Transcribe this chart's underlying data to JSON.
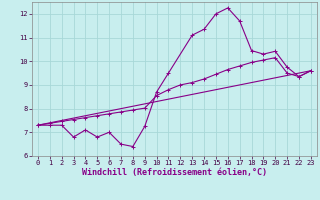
{
  "title": "",
  "xlabel": "Windchill (Refroidissement éolien,°C)",
  "bg_color": "#c8eeee",
  "grid_color": "#a8d8d8",
  "line_color": "#880088",
  "xlim": [
    -0.5,
    23.5
  ],
  "ylim": [
    6,
    12.5
  ],
  "xticks": [
    0,
    1,
    2,
    3,
    4,
    5,
    6,
    7,
    8,
    9,
    10,
    11,
    12,
    13,
    14,
    15,
    16,
    17,
    18,
    19,
    20,
    21,
    22,
    23
  ],
  "yticks": [
    6,
    7,
    8,
    9,
    10,
    11,
    12
  ],
  "line1_x": [
    0,
    1,
    2,
    3,
    4,
    5,
    6,
    7,
    8,
    9,
    10,
    11,
    13,
    14,
    15,
    16,
    17,
    18,
    19,
    20,
    21,
    22,
    23
  ],
  "line1_y": [
    7.3,
    7.3,
    7.3,
    6.8,
    7.1,
    6.8,
    7.0,
    6.5,
    6.4,
    7.25,
    8.7,
    9.5,
    11.1,
    11.35,
    12.0,
    12.25,
    11.7,
    10.45,
    10.3,
    10.42,
    9.75,
    9.35,
    9.6
  ],
  "line2_x": [
    0,
    1,
    2,
    3,
    4,
    5,
    6,
    7,
    8,
    9,
    10,
    11,
    12,
    13,
    14,
    15,
    16,
    17,
    18,
    19,
    20,
    21,
    22,
    23
  ],
  "line2_y": [
    7.3,
    7.38,
    7.46,
    7.54,
    7.62,
    7.7,
    7.78,
    7.86,
    7.94,
    8.02,
    8.55,
    8.8,
    9.0,
    9.1,
    9.25,
    9.45,
    9.65,
    9.8,
    9.95,
    10.05,
    10.15,
    9.5,
    9.35,
    9.6
  ],
  "line3_x": [
    0,
    23
  ],
  "line3_y": [
    7.3,
    9.6
  ],
  "tick_fontsize": 5,
  "xlabel_fontsize": 6,
  "marker_size": 2.5,
  "marker_ew": 0.7,
  "lw": 0.8
}
